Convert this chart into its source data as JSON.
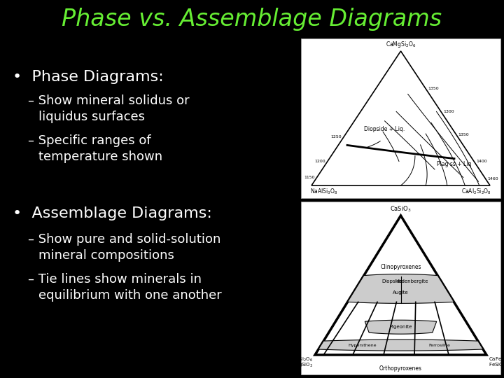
{
  "background_color": "#000000",
  "title": "Phase vs. Assemblage Diagrams",
  "title_color": "#66ee33",
  "title_fontsize": 24,
  "bullet1_header": "•  Phase Diagrams:",
  "bullet1_sub1": "– Show mineral solidus or\n    liquidus surfaces",
  "bullet1_sub2": "– Specific ranges of\n    temperature shown",
  "bullet2_header": "•  Assemblage Diagrams:",
  "bullet2_sub1": "– Show pure and solid-solution\n    mineral compositions",
  "bullet2_sub2": "– Tie lines show minerals in\n    equilibrium with one another",
  "text_color": "#ffffff",
  "header_fontsize": 16,
  "sub_fontsize": 13
}
